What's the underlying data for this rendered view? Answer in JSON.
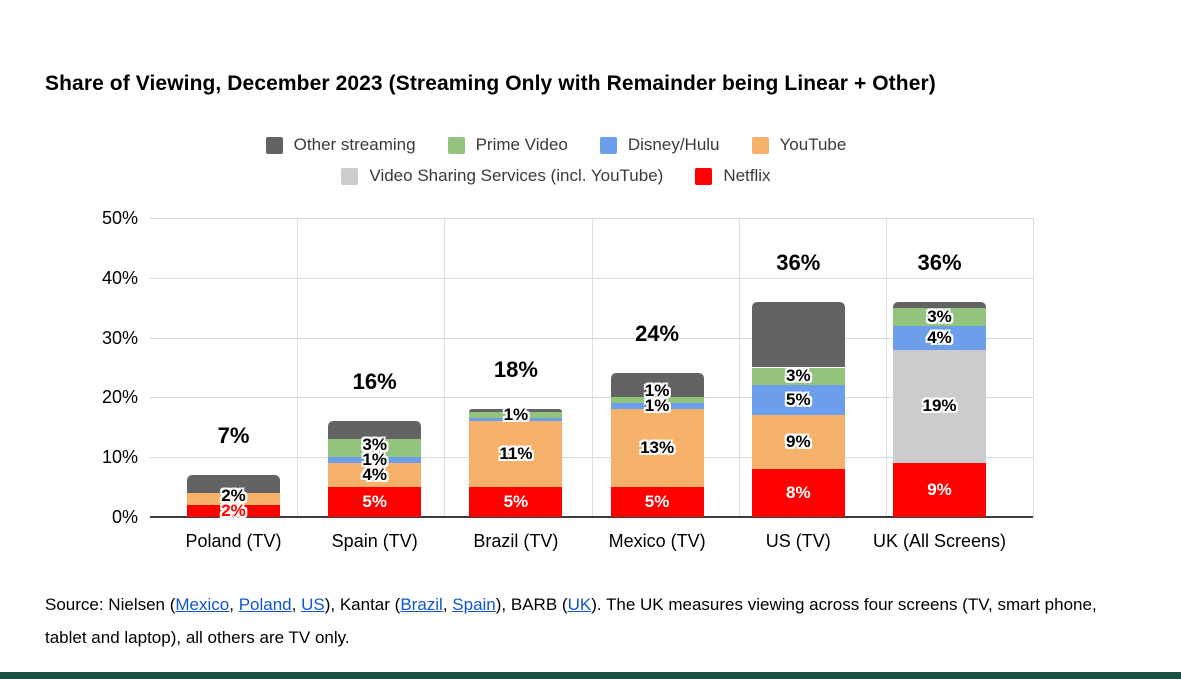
{
  "page": {
    "bottom_strip_color": "#1d4e42",
    "background": "#ffffff"
  },
  "chart_data": {
    "type": "stacked-bar",
    "title": "Share of Viewing, December 2023 (Streaming Only with Remainder being Linear + Other)",
    "xlabel": "",
    "ylabel": "",
    "ylim": [
      0,
      50
    ],
    "y_ticks": [
      "0%",
      "10%",
      "20%",
      "30%",
      "40%",
      "50%"
    ],
    "grid": true,
    "legend_position": "top",
    "legend_rows": [
      [
        "Other streaming",
        "Prime Video",
        "Disney/Hulu",
        "YouTube"
      ],
      [
        "Video Sharing Services (incl. YouTube)",
        "Netflix"
      ]
    ],
    "colors": {
      "Other streaming": "#636363",
      "Prime Video": "#93c47d",
      "Disney/Hulu": "#6d9eeb",
      "YouTube": "#f6b26b",
      "Video Sharing Services (incl. YouTube)": "#cccccc",
      "Netflix": "#ff0000"
    },
    "categories": [
      "Poland (TV)",
      "Spain (TV)",
      "Brazil (TV)",
      "Mexico (TV)",
      "US (TV)",
      "UK (All Screens)"
    ],
    "bars": [
      {
        "category": "Poland (TV)",
        "total_label": "7%",
        "segments": [
          {
            "name": "Netflix",
            "value": 2,
            "label": "2%",
            "label_style": "red-outline"
          },
          {
            "name": "YouTube",
            "value": 2,
            "label": "2%",
            "label_style": "black-outline"
          },
          {
            "name": "Other streaming",
            "value": 3,
            "label": "",
            "label_style": "none"
          }
        ]
      },
      {
        "category": "Spain (TV)",
        "total_label": "16%",
        "segments": [
          {
            "name": "Netflix",
            "value": 5,
            "label": "5%",
            "label_style": "white"
          },
          {
            "name": "YouTube",
            "value": 4,
            "label": "4%",
            "label_style": "black-outline"
          },
          {
            "name": "Disney/Hulu",
            "value": 1,
            "label": "1%",
            "label_style": "black-outline"
          },
          {
            "name": "Prime Video",
            "value": 3,
            "label": "3%",
            "label_style": "black-outline"
          },
          {
            "name": "Other streaming",
            "value": 3,
            "label": "",
            "label_style": "none"
          }
        ]
      },
      {
        "category": "Brazil (TV)",
        "total_label": "18%",
        "segments": [
          {
            "name": "Netflix",
            "value": 5,
            "label": "5%",
            "label_style": "white"
          },
          {
            "name": "YouTube",
            "value": 11,
            "label": "11%",
            "label_style": "black-outline"
          },
          {
            "name": "Disney/Hulu",
            "value": 0.5,
            "label": "",
            "label_style": "none"
          },
          {
            "name": "Prime Video",
            "value": 1,
            "label": "1%",
            "label_style": "black-outline"
          },
          {
            "name": "Other streaming",
            "value": 0.5,
            "label": "",
            "label_style": "none"
          }
        ]
      },
      {
        "category": "Mexico (TV)",
        "total_label": "24%",
        "segments": [
          {
            "name": "Netflix",
            "value": 5,
            "label": "5%",
            "label_style": "white"
          },
          {
            "name": "YouTube",
            "value": 13,
            "label": "13%",
            "label_style": "black-outline"
          },
          {
            "name": "Disney/Hulu",
            "value": 1,
            "label": "1%",
            "label_style": "black-outline"
          },
          {
            "name": "Prime Video",
            "value": 1,
            "label": "1%",
            "label_style": "black-outline"
          },
          {
            "name": "Other streaming",
            "value": 4,
            "label": "",
            "label_style": "none"
          }
        ]
      },
      {
        "category": "US (TV)",
        "total_label": "36%",
        "segments": [
          {
            "name": "Netflix",
            "value": 8,
            "label": "8%",
            "label_style": "white"
          },
          {
            "name": "YouTube",
            "value": 9,
            "label": "9%",
            "label_style": "black-outline"
          },
          {
            "name": "Disney/Hulu",
            "value": 5,
            "label": "5%",
            "label_style": "black-outline"
          },
          {
            "name": "Prime Video",
            "value": 3,
            "label": "3%",
            "label_style": "black-outline"
          },
          {
            "name": "Other streaming",
            "value": 11,
            "label": "",
            "label_style": "none"
          }
        ]
      },
      {
        "category": "UK (All Screens)",
        "total_label": "36%",
        "segments": [
          {
            "name": "Netflix",
            "value": 9,
            "label": "9%",
            "label_style": "white"
          },
          {
            "name": "Video Sharing Services (incl. YouTube)",
            "value": 19,
            "label": "19%",
            "label_style": "black-outline"
          },
          {
            "name": "Disney/Hulu",
            "value": 4,
            "label": "4%",
            "label_style": "black-outline"
          },
          {
            "name": "Prime Video",
            "value": 3,
            "label": "3%",
            "label_style": "black-outline"
          },
          {
            "name": "Other streaming",
            "value": 1,
            "label": "",
            "label_style": "none"
          }
        ]
      }
    ]
  },
  "source": {
    "link_color": "#1155cc",
    "parts": [
      {
        "text": "Source: Nielsen ("
      },
      {
        "text": "Mexico",
        "link": true
      },
      {
        "text": ", "
      },
      {
        "text": "Poland",
        "link": true
      },
      {
        "text": ", "
      },
      {
        "text": "US",
        "link": true
      },
      {
        "text": "), Kantar ("
      },
      {
        "text": "Brazil",
        "link": true
      },
      {
        "text": ", "
      },
      {
        "text": "Spain",
        "link": true
      },
      {
        "text": "), BARB ("
      },
      {
        "text": "UK",
        "link": true
      },
      {
        "text": "). The UK measures viewing across four screens (TV, smart phone, tablet and laptop), all others are TV only."
      }
    ]
  }
}
